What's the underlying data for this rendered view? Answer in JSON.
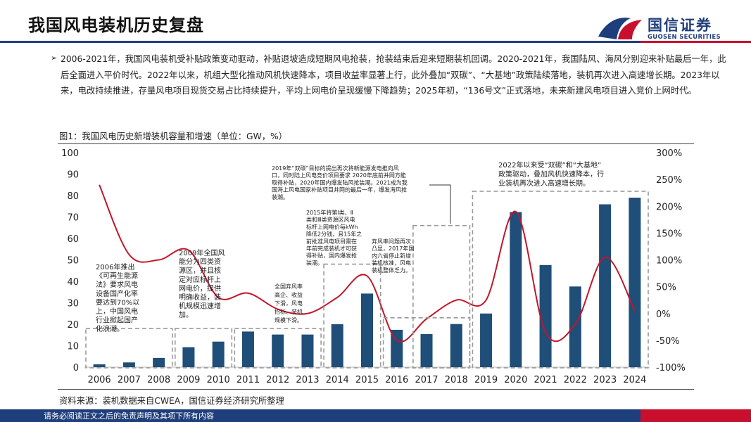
{
  "header": {
    "title": "我国风电装机历史复盘"
  },
  "logo": {
    "name_cn": "国信证券",
    "name_en": "GUOSEN SECURITIES",
    "icon": "guosen-logo-icon"
  },
  "summary": {
    "bullet": "➢",
    "text": "2006-2021年，我国风电装机受补贴政策变动驱动，补贴退坡造成短期风电抢装，抢装结束后迎来短期装机回调。2020-2021年，我国陆风、海风分别迎来补贴最后一年，此后全面进入平价时代。2022年以来，机组大型化推动风机快速降本，项目收益率显著上行，此外叠加“双碳”、“大基地”政策陆续落地，装机再次进入高速增长期。2023年以来，电改持续推进，存量风电项目现货交易占比持续提升，平均上网电价呈现缓慢下降趋势；2025年初，“136号文”正式落地，未来新建风电项目进入竞价上网时代。"
  },
  "figure": {
    "caption": "图1：我国风电历史新增装机容量和增速（单位：GW，%）"
  },
  "source": "资料来源：装机数据来自CWEA，国信证券经济研究所整理",
  "footer": {
    "disclaimer": "请务必阅读正文之后的免责声明及其项下所有内容"
  },
  "colors": {
    "bar": "#1f4e79",
    "line": "#c0172a",
    "brand_blue": "#1f3e7c",
    "brand_red": "#c8102e"
  },
  "chart_data": {
    "type": "bar",
    "categories": [
      "2006",
      "2007",
      "2008",
      "2009",
      "2010",
      "2011",
      "2012",
      "2013",
      "2014",
      "2015",
      "2016",
      "2017",
      "2018",
      "2019",
      "2020",
      "2021",
      "2022",
      "2023",
      "2024"
    ],
    "series": [
      {
        "axis": "left",
        "type": "bar",
        "values": [
          1.3,
          2.2,
          4.3,
          9.3,
          11.9,
          16.6,
          15.2,
          15.2,
          20.0,
          34.3,
          17.4,
          15.4,
          20.1,
          25.0,
          72.3,
          47.6,
          37.6,
          75.9,
          79.0
        ]
      },
      {
        "axis": "right",
        "type": "line",
        "values": [
          240,
          110,
          100,
          118,
          30,
          38,
          8,
          0,
          30,
          70,
          -50,
          -10,
          25,
          25,
          190,
          -35,
          -20,
          105,
          5
        ]
      }
    ],
    "y_left": {
      "min": 0,
      "max": 100,
      "ticks": [
        "0",
        "10",
        "20",
        "30",
        "40",
        "50",
        "60",
        "70",
        "80",
        "90",
        "100"
      ]
    },
    "y_right": {
      "min": -100,
      "max": 300,
      "ticks": [
        "-100%",
        "-50%",
        "0%",
        "50%",
        "100%",
        "150%",
        "200%",
        "250%",
        "300%"
      ]
    },
    "annotations": [
      {
        "id": "a2006",
        "lines": [
          "2006年推出",
          "《可再生能源",
          "法》要求风电",
          "设备国产化率",
          "要达到70%以",
          "上，中国风电",
          "行业掀起国产",
          "化浪潮。"
        ]
      },
      {
        "id": "a2009",
        "lines": [
          "2009年全国风",
          "能分为四类资",
          "源区，并且核",
          "定对应标杆上",
          "网电价，提供",
          "明确收益，装",
          "机规模迅速增",
          "加。"
        ]
      },
      {
        "id": "a2012",
        "lines": [
          "全国弃风率",
          "高企、收益",
          "下滑，风电",
          "招标、装机",
          "规模下滑。"
        ]
      },
      {
        "id": "a2015",
        "lines": [
          "2015年将第Ⅰ类、Ⅱ",
          "类和Ⅲ类资源区风电",
          "标杆上网电价每kWh",
          "降低2分钱，且15年之",
          "前批准风电项目需在",
          "年前完成装机才可获",
          "得补贴，国内爆发抢",
          "装潮。"
        ]
      },
      {
        "id": "a2016",
        "lines": [
          "弃风率问题再次",
          "凸显，2017年国",
          "内六省停止新增",
          "装机核准，风电",
          "装机整体乏力。"
        ]
      },
      {
        "id": "a2019",
        "lines": [
          "2019年“双碳”目标的提出再次将新能源发电推向风",
          "口，同时陆上风电竞价项目要求 2020年底前并网方能",
          "取得补贴，2020年国内爆发陆风抢装潮。2021成为我",
          "国海上风电国家补贴项目并网的最后一年，爆发海风抢",
          "装潮。"
        ]
      },
      {
        "id": "a2022",
        "lines": [
          "2022年以来受“双碳”和“大基地”",
          "政策驱动，叠加风机快速降本，行",
          "业装机再次进入高速增长期。"
        ]
      }
    ]
  }
}
